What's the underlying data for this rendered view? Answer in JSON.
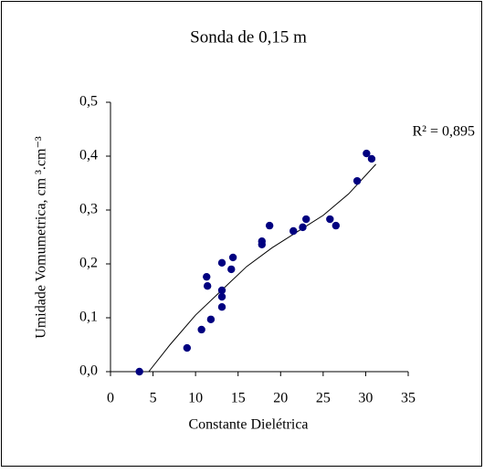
{
  "chart_data": {
    "type": "scatter",
    "title": "Sonda de 0,15 m",
    "xlabel": "Constante Dielétrica",
    "ylabel": "Umidade Vomumetrica, cm ³.cm⁻³",
    "annotation": "R² = 0,895",
    "x": [
      3.4,
      9.0,
      10.7,
      11.8,
      11.3,
      11.4,
      13.1,
      13.1,
      13.1,
      13.1,
      14.2,
      14.4,
      17.8,
      17.8,
      18.7,
      21.5,
      22.6,
      23.0,
      25.8,
      26.5,
      29.0,
      30.1,
      30.7
    ],
    "y": [
      0.0,
      0.044,
      0.078,
      0.097,
      0.176,
      0.159,
      0.12,
      0.139,
      0.151,
      0.202,
      0.19,
      0.212,
      0.242,
      0.236,
      0.271,
      0.261,
      0.268,
      0.283,
      0.283,
      0.271,
      0.354,
      0.405,
      0.395
    ],
    "color": "#000080",
    "fit": {
      "x": [
        4.5,
        7,
        10,
        13,
        16,
        19,
        22,
        25,
        28,
        31.2
      ],
      "y": [
        0.0,
        0.05,
        0.105,
        0.15,
        0.195,
        0.23,
        0.26,
        0.29,
        0.33,
        0.385
      ],
      "color": "#000000"
    },
    "xlim": [
      0,
      35
    ],
    "xticks": [
      0,
      5,
      10,
      15,
      20,
      25,
      30,
      35
    ],
    "ylim": [
      0,
      0.5
    ],
    "yticks": [
      {
        "value": 0,
        "label": "0,0"
      },
      {
        "value": 0.1,
        "label": "0,1"
      },
      {
        "value": 0.2,
        "label": "0,2"
      },
      {
        "value": 0.3,
        "label": "0,3"
      },
      {
        "value": 0.4,
        "label": "0,4"
      },
      {
        "value": 0.5,
        "label": "0,5"
      }
    ]
  }
}
